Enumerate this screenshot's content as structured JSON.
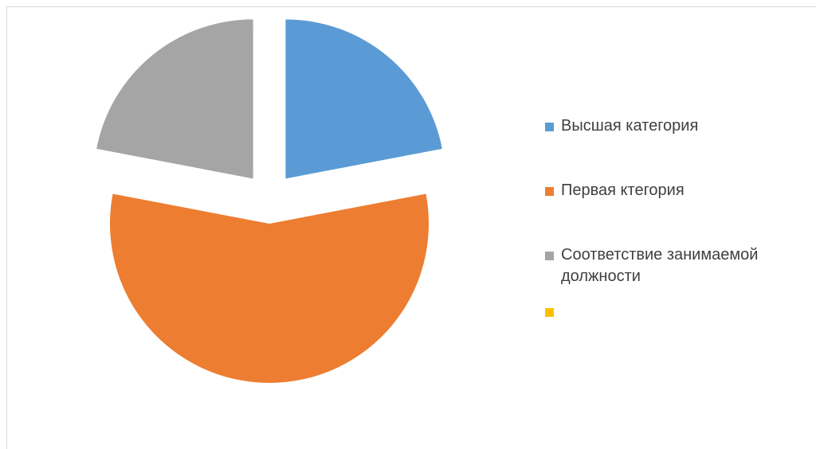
{
  "chart_data": {
    "type": "pie",
    "exploded": true,
    "start_angle_deg": 0,
    "direction": "clockwise",
    "categories": [
      "Высшая категория",
      "Первая ктегория",
      "Соответствие занимаемой должности",
      ""
    ],
    "values": [
      22,
      56,
      22,
      0
    ],
    "colors": [
      "#5b9bd5",
      "#ed7d31",
      "#a5a5a5",
      "#ffc000"
    ],
    "legend_position": "right"
  }
}
